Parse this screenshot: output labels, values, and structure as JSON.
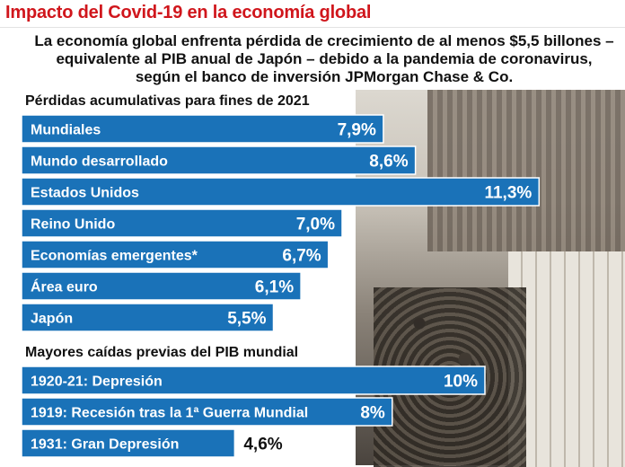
{
  "header": {
    "title": "Impacto del Covid-19 en la economía global",
    "subtitle": "La economía global enfrenta pérdida de crecimiento de al menos $5,5 billones – equivalente al PIB anual de Japón – debido a la pandemia de coronavirus, según el banco de inversión JPMorgan Chase & Co."
  },
  "colors": {
    "title": "#d0161c",
    "bar": "#1a72b8"
  },
  "chart_data": [
    {
      "type": "bar",
      "orientation": "horizontal",
      "title": "Pérdidas acumulativas para fines de 2021",
      "categories": [
        "Mundiales",
        "Mundo desarrollado",
        "Estados Unidos",
        "Reino Unido",
        "Economías emergentes*",
        "Área euro",
        "Japón"
      ],
      "values": [
        7.9,
        8.6,
        11.3,
        7.0,
        6.7,
        6.1,
        5.5
      ],
      "value_labels": [
        "7,9%",
        "8,6%",
        "11,3%",
        "7,0%",
        "6,7%",
        "6,1%",
        "5,5%"
      ],
      "unit": "%"
    },
    {
      "type": "bar",
      "orientation": "horizontal",
      "title": "Mayores caídas previas del PIB mundial",
      "categories": [
        "1920-21: Depresión",
        "1919: Recesión tras la 1ª Guerra Mundial",
        "1931: Gran Depresión"
      ],
      "values": [
        10,
        8,
        4.6
      ],
      "value_labels": [
        "10%",
        "8%",
        "4,6%"
      ],
      "unit": "%"
    }
  ]
}
